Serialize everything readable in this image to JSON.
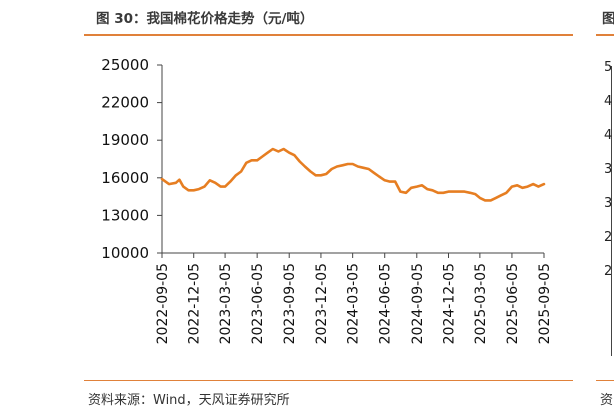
{
  "figure": {
    "title": "图 30：我国棉花价格走势（元/吨）",
    "source": "资料来源：Wind，天风证券研究所"
  },
  "neighbor": {
    "title_fragment": "图",
    "source_fragment": "资",
    "tick_fragments": [
      "5",
      "4",
      "4",
      "3",
      "3",
      "2",
      "2"
    ]
  },
  "colors": {
    "line": "#e67e22",
    "rule": "#e0813a",
    "axis": "#444444"
  },
  "chart_data": {
    "type": "line",
    "title": "",
    "xlabel": "",
    "ylabel": "",
    "ylim": [
      10000,
      25000
    ],
    "yticks": [
      10000,
      13000,
      16000,
      19000,
      22000,
      25000
    ],
    "x_ticks": [
      "2022-09-05",
      "2022-12-05",
      "2023-03-05",
      "2023-06-05",
      "2023-09-05",
      "2023-12-05",
      "2024-03-05",
      "2024-06-05",
      "2024-09-05",
      "2024-12-05",
      "2025-03-05",
      "2025-06-05",
      "2025-09-05"
    ],
    "grid": false,
    "legend": "none",
    "series": [
      {
        "x": [
          "2022-09-05",
          "2022-09-25",
          "2022-10-15",
          "2022-10-25",
          "2022-11-05",
          "2022-11-20",
          "2022-12-05",
          "2022-12-20",
          "2023-01-05",
          "2023-01-20",
          "2023-02-05",
          "2023-02-20",
          "2023-03-05",
          "2023-03-20",
          "2023-04-05",
          "2023-04-20",
          "2023-05-05",
          "2023-05-20",
          "2023-06-05",
          "2023-06-20",
          "2023-07-05",
          "2023-07-20",
          "2023-08-05",
          "2023-08-20",
          "2023-09-05",
          "2023-09-20",
          "2023-10-05",
          "2023-10-20",
          "2023-11-05",
          "2023-11-20",
          "2023-12-05",
          "2023-12-20",
          "2024-01-05",
          "2024-01-20",
          "2024-02-05",
          "2024-02-20",
          "2024-03-05",
          "2024-03-20",
          "2024-04-05",
          "2024-04-20",
          "2024-05-05",
          "2024-05-20",
          "2024-06-05",
          "2024-06-20",
          "2024-07-05",
          "2024-07-20",
          "2024-08-05",
          "2024-08-20",
          "2024-09-05",
          "2024-09-20",
          "2024-10-05",
          "2024-10-20",
          "2024-11-05",
          "2024-11-20",
          "2024-12-05",
          "2024-12-20",
          "2025-01-05",
          "2025-01-20",
          "2025-02-05",
          "2025-02-20",
          "2025-03-05",
          "2025-03-20",
          "2025-04-05",
          "2025-04-20",
          "2025-05-05",
          "2025-05-20",
          "2025-06-05",
          "2025-06-20",
          "2025-07-05",
          "2025-07-20",
          "2025-08-05",
          "2025-08-20",
          "2025-09-05"
        ],
        "values": [
          15900,
          15500,
          15600,
          15850,
          15300,
          15000,
          15000,
          15100,
          15300,
          15800,
          15600,
          15300,
          15300,
          15700,
          16200,
          16500,
          17200,
          17400,
          17400,
          17700,
          18000,
          18300,
          18100,
          18300,
          18000,
          17800,
          17300,
          16900,
          16500,
          16200,
          16200,
          16300,
          16700,
          16900,
          17000,
          17100,
          17100,
          16900,
          16800,
          16700,
          16400,
          16100,
          15800,
          15700,
          15700,
          14900,
          14800,
          15200,
          15300,
          15400,
          15100,
          15000,
          14800,
          14800,
          14900,
          14900,
          14900,
          14900,
          14800,
          14700,
          14400,
          14200,
          14200,
          14400,
          14600,
          14800,
          15300,
          15400,
          15200,
          15300,
          15500,
          15300,
          15500
        ]
      }
    ]
  }
}
